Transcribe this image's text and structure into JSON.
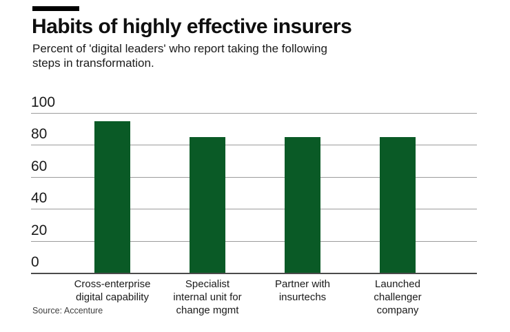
{
  "header": {
    "title": "Habits of highly effective insurers",
    "subtitle": "Percent of 'digital leaders' who report taking the following\nsteps in transformation."
  },
  "source": {
    "label": "Source: Accenture"
  },
  "colors": {
    "bar_green": "#0a5a26",
    "gridline_gray": "#9b9b9b",
    "baseline_gray": "#4a4a4a",
    "top_rule_black": "#000000"
  },
  "chart_data": {
    "type": "bar",
    "title": "Habits of highly effective insurers",
    "subtitle": "Percent of 'digital leaders' who report taking the following steps in transformation.",
    "categories": [
      "Cross-enterprise\ndigital capability",
      "Specialist\ninternal unit for\nchange mgmt",
      "Partner with\ninsurtechs",
      "Launched\nchallenger\ncompany"
    ],
    "values": [
      95,
      85,
      85,
      85
    ],
    "xlabel": "",
    "ylabel": "",
    "ylim": [
      0,
      100
    ],
    "yticks": [
      0,
      20,
      40,
      60,
      80,
      100
    ],
    "grid": true,
    "legend": "none",
    "source": "Source: Accenture"
  }
}
